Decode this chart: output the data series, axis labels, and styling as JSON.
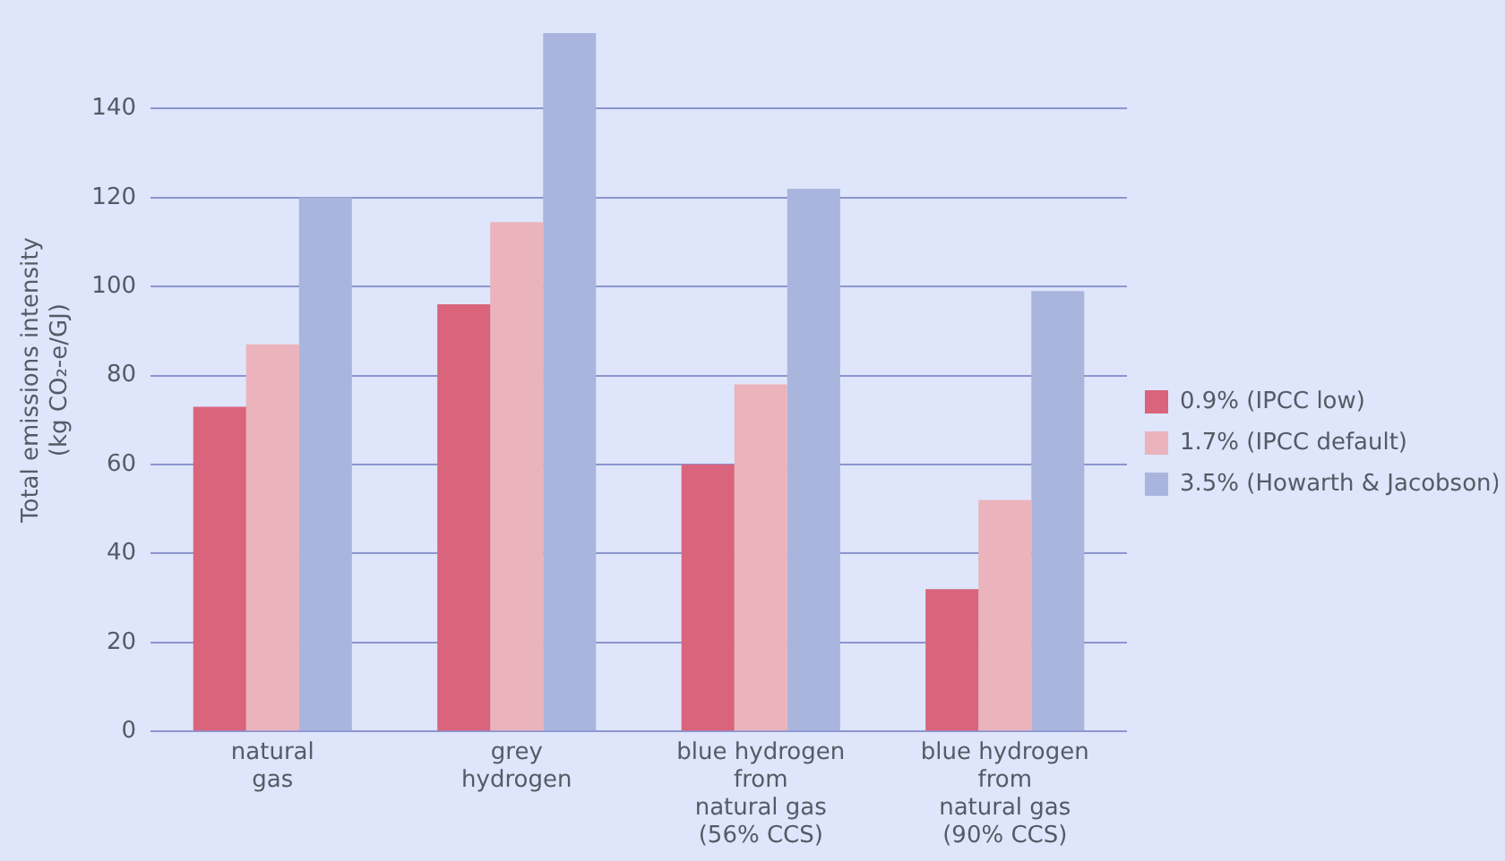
{
  "chart_data": {
    "type": "bar",
    "ylabel": "Total emissions intensity\n(kg CO₂-e/GJ)",
    "categories": [
      "natural\ngas",
      "grey\nhydrogen",
      "blue hydrogen\nfrom\nnatural gas\n(56% CCS)",
      "blue hydrogen\nfrom\nnatural gas\n(90% CCS)"
    ],
    "series": [
      {
        "name": "0.9% (IPCC low)",
        "color": "#d9647c",
        "values": [
          73,
          96,
          60,
          32
        ]
      },
      {
        "name": "1.7% (IPCC default)",
        "color": "#ebb3bb",
        "values": [
          87,
          114.5,
          78,
          52
        ]
      },
      {
        "name": "3.5% (Howarth & Jacobson)",
        "color": "#a9b5dd",
        "values": [
          120,
          157,
          122,
          99
        ]
      }
    ],
    "ylim": [
      0,
      158
    ],
    "yticks": [
      0,
      20,
      40,
      60,
      80,
      100,
      120,
      140
    ],
    "grid": "y",
    "legend": "right"
  }
}
